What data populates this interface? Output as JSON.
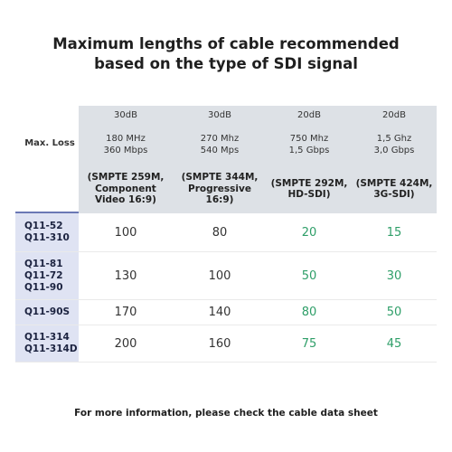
{
  "title": {
    "line1": "Maximum lengths of cable recommended",
    "line2": "based on the type of SDI signal"
  },
  "header": {
    "row_label": "Max. Loss",
    "columns": [
      {
        "loss": "30dB",
        "freq1": "180 MHz",
        "freq2": "360 Mbps",
        "std1": "(SMPTE 259M,",
        "std2": "Component",
        "std3": "Video 16:9)"
      },
      {
        "loss": "30dB",
        "freq1": "270 Mhz",
        "freq2": "540 Mps",
        "std1": "(SMPTE 344M,",
        "std2": "Progressive 16:9)",
        "std3": ""
      },
      {
        "loss": "20dB",
        "freq1": "750 Mhz",
        "freq2": "1,5 Gbps",
        "std1": "(SMPTE 292M,",
        "std2": "HD-SDI)",
        "std3": ""
      },
      {
        "loss": "20dB",
        "freq1": "1,5 Ghz",
        "freq2": "3,0 Gbps",
        "std1": "(SMPTE 424M,",
        "std2": "3G-SDI)",
        "std3": ""
      }
    ]
  },
  "rows": [
    {
      "models": [
        "Q11-52",
        "Q11-310"
      ],
      "values": [
        "100",
        "80",
        "20",
        "15"
      ]
    },
    {
      "models": [
        "Q11-81",
        "Q11-72",
        "Q11-90"
      ],
      "values": [
        "130",
        "100",
        "50",
        "30"
      ]
    },
    {
      "models": [
        "Q11-90S"
      ],
      "values": [
        "170",
        "140",
        "80",
        "50"
      ]
    },
    {
      "models": [
        "Q11-314",
        "Q11-314D"
      ],
      "values": [
        "200",
        "160",
        "75",
        "45"
      ]
    }
  ],
  "colors": {
    "header_bg": "#dde1e6",
    "model_bg": "#dfe3f3",
    "accent_line": "#6a78b5",
    "green_value": "#2e9e68"
  },
  "footer": "For more information, please check the cable data sheet"
}
